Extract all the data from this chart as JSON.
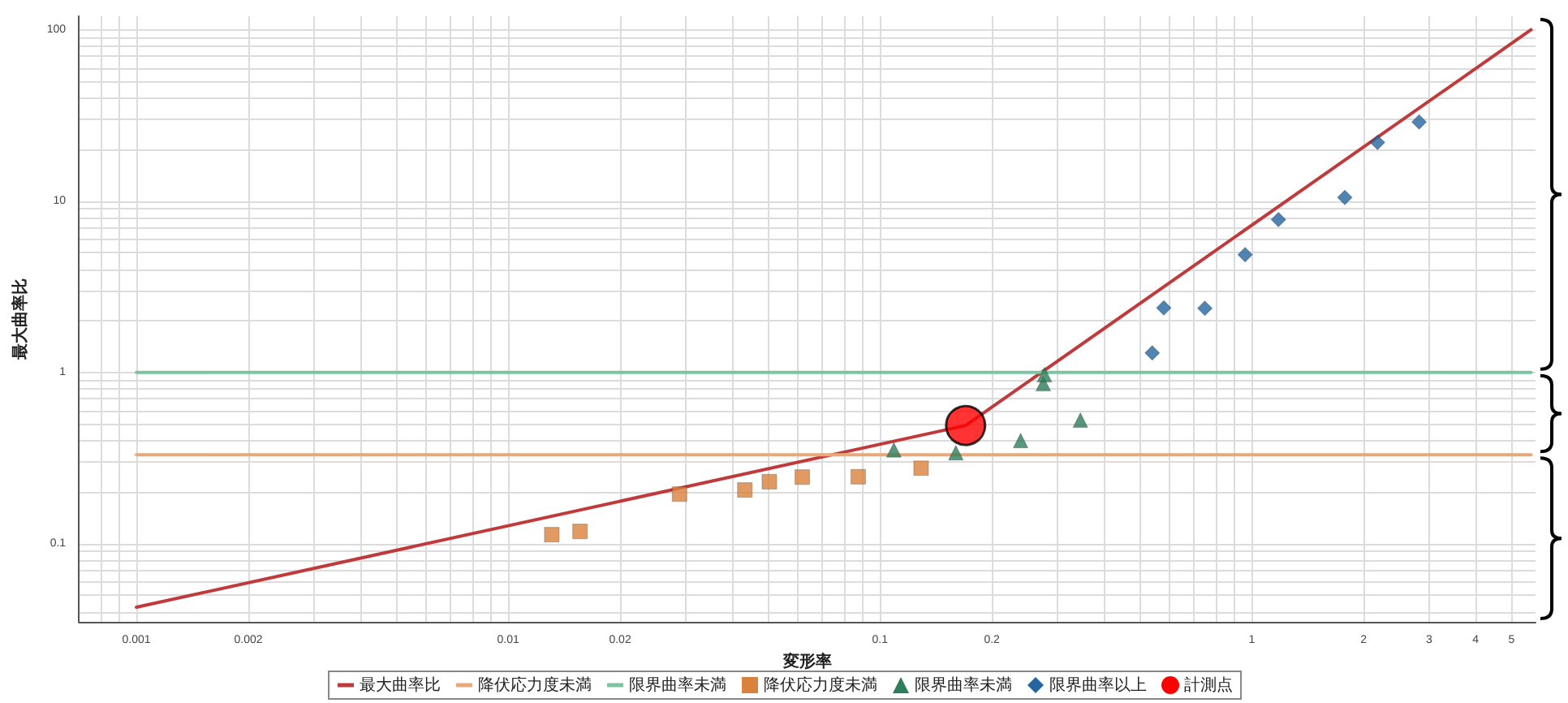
{
  "chart_data": {
    "type": "scatter",
    "xlabel": "変形率",
    "ylabel": "最大曲率比",
    "log": "xy",
    "grid": true,
    "legend": "bottom",
    "xlim": [
      0.0007,
      5.8
    ],
    "xticks": [
      {
        "value": 0.0008,
        "label": null
      },
      {
        "value": 0.0009,
        "label": null
      },
      0.001,
      0.002,
      {
        "value": 0.003,
        "label": null
      },
      {
        "value": 0.004,
        "label": null
      },
      {
        "value": 0.005,
        "label": null
      },
      {
        "value": 0.006,
        "label": null
      },
      {
        "value": 0.007,
        "label": null
      },
      {
        "value": 0.008,
        "label": null
      },
      {
        "value": 0.009,
        "label": null
      },
      0.01,
      0.02,
      {
        "value": 0.03,
        "label": null
      },
      {
        "value": 0.04,
        "label": null
      },
      {
        "value": 0.05,
        "label": null
      },
      {
        "value": 0.06,
        "label": null
      },
      {
        "value": 0.07,
        "label": null
      },
      {
        "value": 0.08,
        "label": null
      },
      {
        "value": 0.09,
        "label": null
      },
      0.1,
      0.2,
      {
        "value": 0.3,
        "label": null
      },
      {
        "value": 0.4,
        "label": null
      },
      {
        "value": 0.5,
        "label": null
      },
      {
        "value": 0.6,
        "label": null
      },
      {
        "value": 0.7,
        "label": null
      },
      {
        "value": 0.8,
        "label": null
      },
      {
        "value": 0.9,
        "label": null
      },
      1,
      2,
      3,
      4,
      5
    ],
    "ylim": [
      0.035,
      120
    ],
    "yticks": [
      {
        "value": 0.04,
        "label": null
      },
      {
        "value": 0.05,
        "label": null
      },
      {
        "value": 0.06,
        "label": null
      },
      {
        "value": 0.07,
        "label": null
      },
      {
        "value": 0.08,
        "label": null
      },
      {
        "value": 0.09,
        "label": null
      },
      0.1,
      {
        "value": 0.2,
        "label": null
      },
      {
        "value": 0.3,
        "label": null
      },
      {
        "value": 0.4,
        "label": null
      },
      {
        "value": 0.5,
        "label": null
      },
      {
        "value": 0.6,
        "label": null
      },
      {
        "value": 0.7,
        "label": null
      },
      {
        "value": 0.8,
        "label": null
      },
      {
        "value": 0.9,
        "label": null
      },
      1,
      {
        "value": 2,
        "label": null
      },
      {
        "value": 3,
        "label": null
      },
      {
        "value": 4,
        "label": null
      },
      {
        "value": 5,
        "label": null
      },
      {
        "value": 6,
        "label": null
      },
      {
        "value": 7,
        "label": null
      },
      {
        "value": 8,
        "label": null
      },
      {
        "value": 9,
        "label": null
      },
      10,
      {
        "value": 20,
        "label": null
      },
      {
        "value": 30,
        "label": null
      },
      {
        "value": 40,
        "label": null
      },
      {
        "value": 50,
        "label": null
      },
      {
        "value": 60,
        "label": null
      },
      {
        "value": 70,
        "label": null
      },
      {
        "value": 80,
        "label": null
      },
      {
        "value": 90,
        "label": null
      },
      100
    ],
    "series": [
      {
        "name": "最大曲率比",
        "type": "line",
        "marker": "none",
        "color": "#c0393b",
        "x": [
          0.001,
          0.17,
          5.64
        ],
        "values": [
          0.0426,
          0.49,
          100
        ]
      },
      {
        "name": "降伏応力度未満",
        "type": "line",
        "marker": "none",
        "color": "#e8a878",
        "x": [
          0.001,
          5.64
        ],
        "values": [
          0.33,
          0.33
        ]
      },
      {
        "name": "限界曲率未満",
        "type": "line",
        "marker": "none",
        "color": "#7cc4a0",
        "x": [
          0.001,
          5.64
        ],
        "values": [
          1,
          1
        ]
      },
      {
        "name": "降伏応力度未満",
        "type": "scatter",
        "marker": "square",
        "color": "#d9823b",
        "x": [
          0.0131,
          0.0156,
          0.0289,
          0.0433,
          0.0504,
          0.0618,
          0.0874,
          0.129
        ],
        "values": [
          0.113,
          0.118,
          0.195,
          0.206,
          0.23,
          0.245,
          0.246,
          0.276
        ]
      },
      {
        "name": "限界曲率未満",
        "type": "scatter",
        "marker": "triangle",
        "color": "#2e7d5b",
        "x": [
          0.109,
          0.16,
          0.239,
          0.275,
          0.277,
          0.346
        ],
        "values": [
          0.353,
          0.34,
          0.4,
          0.86,
          0.97,
          0.527
        ]
      },
      {
        "name": "限界曲率以上",
        "type": "scatter",
        "marker": "diamond",
        "color": "#2466a0",
        "x": [
          0.54,
          0.58,
          0.748,
          0.96,
          1.18,
          1.78,
          2.18,
          2.82
        ],
        "values": [
          1.3,
          2.38,
          2.37,
          4.87,
          7.8,
          10.5,
          22,
          29
        ]
      },
      {
        "name": "計測点",
        "type": "scatter",
        "marker": "circle",
        "color": "#ff0000",
        "x": [
          0.17
        ],
        "values": [
          0.49
        ]
      }
    ]
  }
}
